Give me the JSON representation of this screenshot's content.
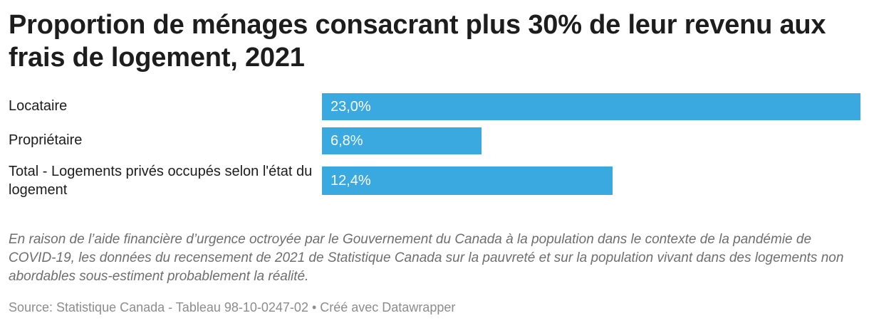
{
  "chart_data": {
    "type": "bar",
    "orientation": "horizontal",
    "title": "Proportion de ménages consacrant plus 30% de leur revenu aux frais de logement, 2021",
    "categories": [
      "Locataire",
      "Propriétaire",
      "Total - Logements privés occupés selon l'état du logement"
    ],
    "values": [
      23.0,
      6.8,
      12.4
    ],
    "value_labels": [
      "23,0%",
      "6,8%",
      "12,4%"
    ],
    "unit": "%",
    "bar_color": "#3aa9e0",
    "grid": false,
    "legend": "none"
  },
  "notes": "En raison de l’aide financière d’urgence octroyée par le Gouvernement du Canada à la population dans le contexte de la pandémie de COVID-19, les données du recensement de 2021 de Statistique Canada sur la pauvreté et sur la population vivant dans des logements non abordables sous-estiment probablement la réalité.",
  "source": "Source: Statistique Canada - Tableau 98-10-0247-02 • Créé avec Datawrapper"
}
